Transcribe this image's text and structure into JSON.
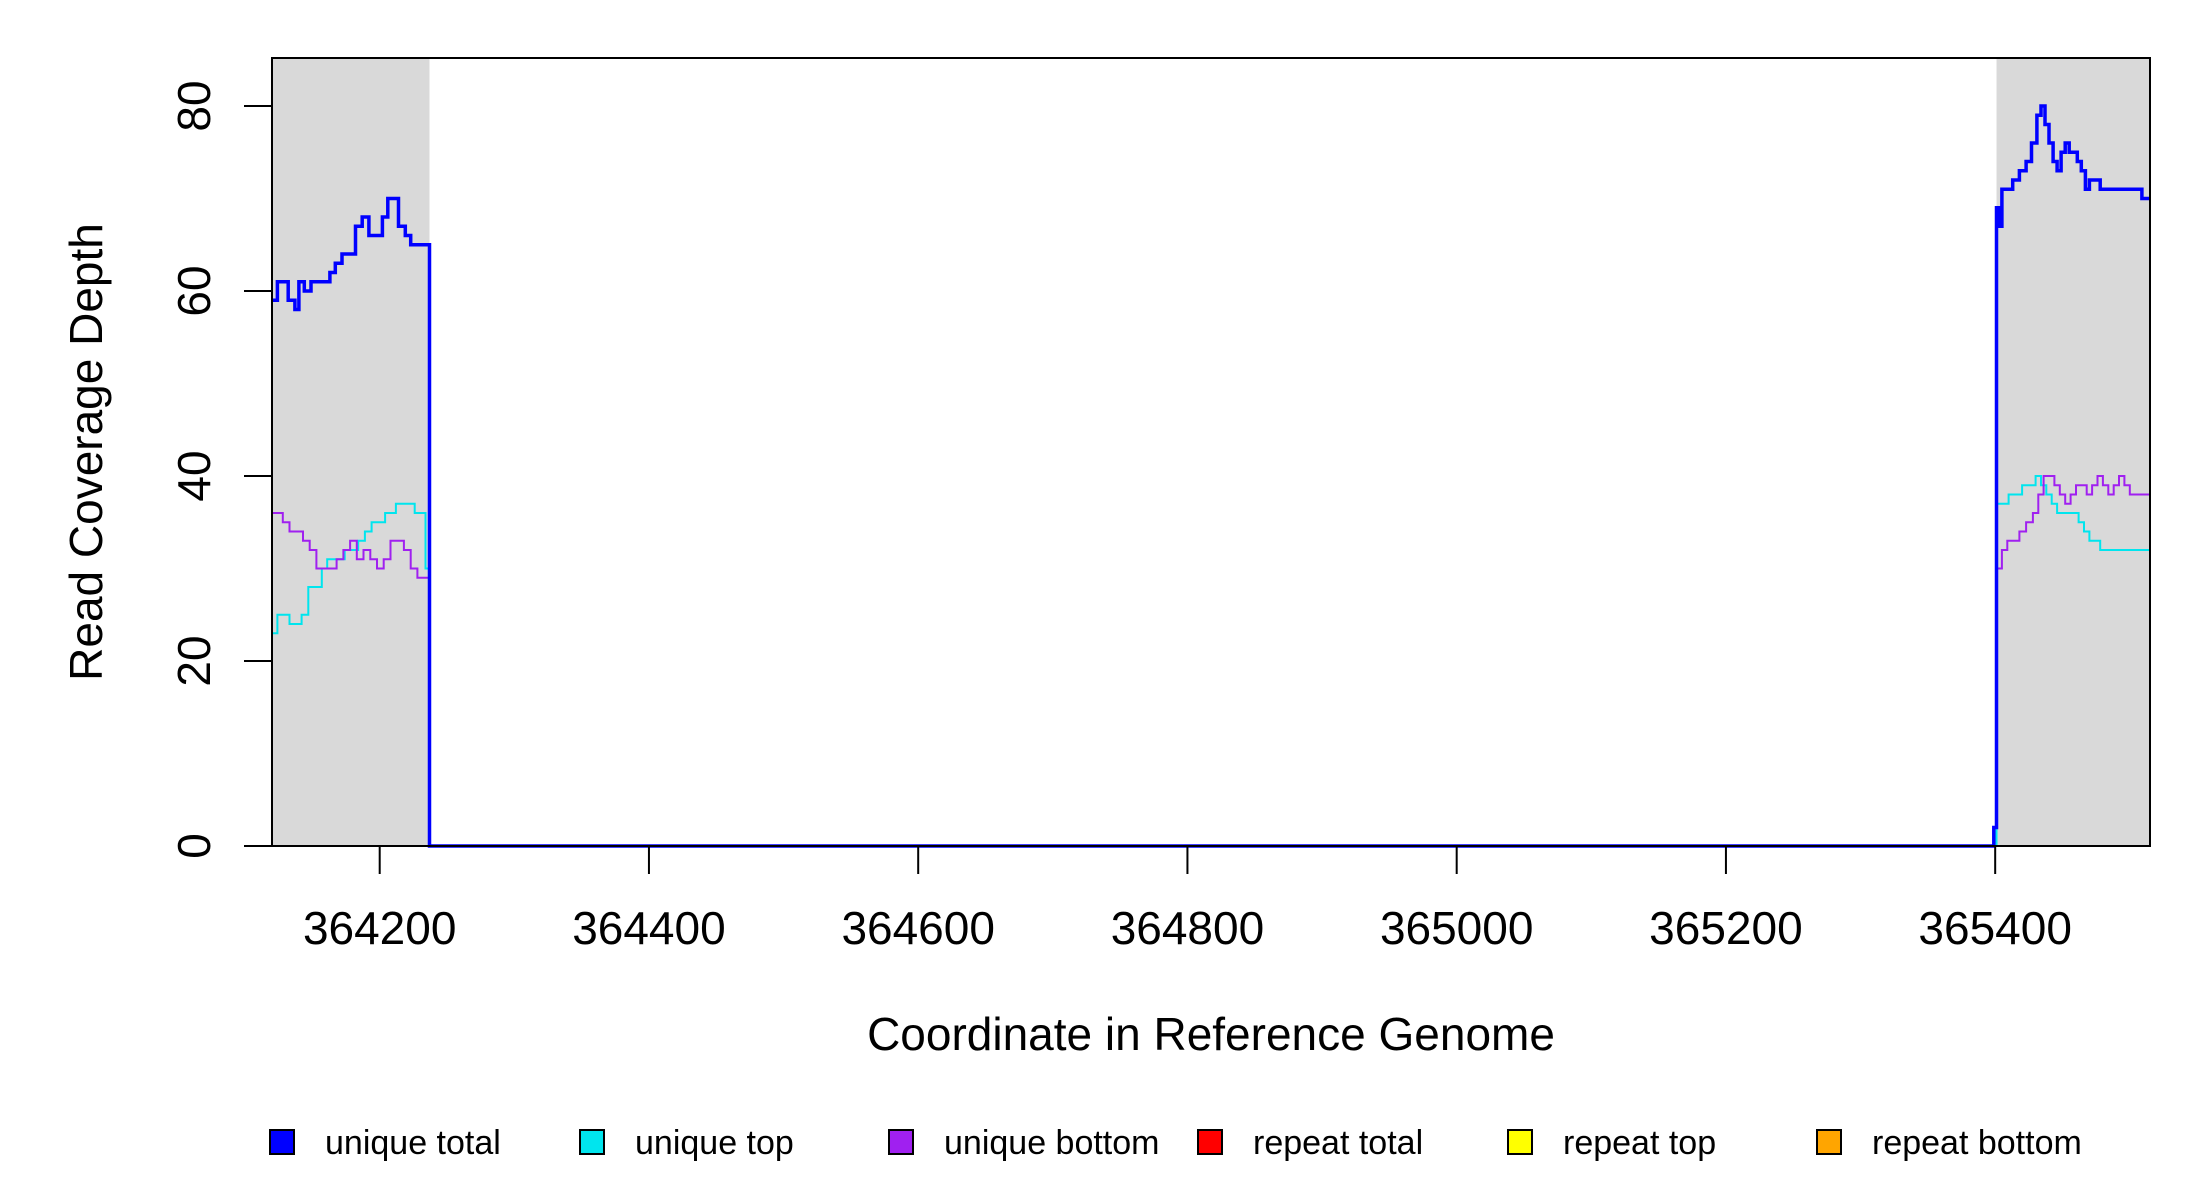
{
  "chart_data": {
    "type": "line",
    "xlabel": "Coordinate in Reference Genome",
    "ylabel": "Read Coverage Depth",
    "xlim": [
      364120,
      365515
    ],
    "ylim": [
      0,
      85
    ],
    "x_ticks": [
      364200,
      364400,
      364600,
      364800,
      365000,
      365200,
      365400
    ],
    "x_tick_labels": [
      "364200",
      "364400",
      "364600",
      "364800",
      "365000",
      "365200",
      "365400"
    ],
    "y_ticks": [
      0,
      20,
      40,
      60,
      80
    ],
    "y_tick_labels": [
      "0",
      "20",
      "40",
      "60",
      "80"
    ],
    "shaded_regions": [
      [
        364120,
        364237
      ],
      [
        365401,
        365515
      ]
    ],
    "shade_color": "#d9d9d9",
    "grid": false,
    "legend_position": "bottom",
    "series": [
      {
        "name": "unique total",
        "color": "#0000ff",
        "x": [
          364120,
          364124,
          364128,
          364132,
          364137,
          364140,
          364144,
          364149,
          364154,
          364159,
          364163,
          364167,
          364172,
          364178,
          364182,
          364187,
          364192,
          364197,
          364202,
          364206,
          364210,
          364214,
          364219,
          364223,
          364228,
          364232,
          364234,
          364236,
          364237,
          364238,
          365397,
          365399,
          365401,
          365403,
          365405,
          365409,
          365413,
          365418,
          365423,
          365427,
          365431,
          365434,
          365437,
          365440,
          365443,
          365446,
          365449,
          365452,
          365455,
          365458,
          365461,
          365464,
          365467,
          365470,
          365474,
          365478,
          365482,
          365486,
          365490,
          365494,
          365499,
          365504,
          365509,
          365514
        ],
        "y": [
          59,
          61,
          61,
          59,
          58,
          61,
          60,
          61,
          61,
          61,
          62,
          63,
          64,
          64,
          67,
          68,
          66,
          66,
          68,
          70,
          70,
          67,
          66,
          65,
          65,
          65,
          65,
          65,
          0,
          0,
          0,
          2,
          69,
          67,
          71,
          71,
          72,
          73,
          74,
          76,
          79,
          80,
          78,
          76,
          74,
          73,
          75,
          76,
          75,
          75,
          74,
          73,
          71,
          72,
          72,
          71,
          71,
          71,
          71,
          71,
          71,
          71,
          70,
          70
        ]
      },
      {
        "name": "unique top",
        "color": "#00e5ee",
        "x": [
          364120,
          364124,
          364128,
          364133,
          364138,
          364142,
          364147,
          364152,
          364157,
          364161,
          364165,
          364169,
          364174,
          364179,
          364184,
          364189,
          364194,
          364199,
          364204,
          364208,
          364212,
          364216,
          364221,
          364226,
          364230,
          364234,
          364236,
          364237,
          364238,
          365399,
          365401,
          365405,
          365410,
          365415,
          365420,
          365425,
          365430,
          365434,
          365438,
          365442,
          365446,
          365450,
          365454,
          365458,
          365462,
          365466,
          365470,
          365474,
          365478,
          365482,
          365486,
          365490,
          365494,
          365498,
          365502,
          365507,
          365512
        ],
        "y": [
          23,
          25,
          25,
          24,
          24,
          25,
          28,
          28,
          30,
          31,
          31,
          31,
          32,
          32,
          33,
          34,
          35,
          35,
          36,
          36,
          37,
          37,
          37,
          36,
          36,
          30,
          30,
          0,
          0,
          0,
          37,
          37,
          38,
          38,
          39,
          39,
          40,
          39,
          38,
          37,
          36,
          36,
          36,
          36,
          35,
          34,
          33,
          33,
          32,
          32,
          32,
          32,
          32,
          32,
          32,
          32,
          32
        ]
      },
      {
        "name": "unique bottom",
        "color": "#a020f0",
        "x": [
          364120,
          364124,
          364128,
          364133,
          364138,
          364143,
          364148,
          364153,
          364158,
          364163,
          364168,
          364173,
          364178,
          364183,
          364188,
          364193,
          364198,
          364203,
          364208,
          364213,
          364218,
          364223,
          364228,
          364232,
          364234,
          364236,
          364237,
          364238,
          365397,
          365399,
          365401,
          365405,
          365409,
          365413,
          365418,
          365423,
          365428,
          365432,
          365436,
          365440,
          365444,
          365448,
          365452,
          365456,
          365460,
          365464,
          365468,
          365472,
          365476,
          365480,
          365484,
          365488,
          365492,
          365496,
          365500,
          365505,
          365510,
          365514
        ],
        "y": [
          36,
          36,
          35,
          34,
          34,
          33,
          32,
          30,
          30,
          30,
          31,
          32,
          33,
          31,
          32,
          31,
          30,
          31,
          33,
          33,
          32,
          30,
          29,
          29,
          29,
          29,
          0,
          0,
          0,
          2,
          30,
          32,
          33,
          33,
          34,
          35,
          36,
          38,
          40,
          40,
          39,
          38,
          37,
          38,
          39,
          39,
          38,
          39,
          40,
          39,
          38,
          39,
          40,
          39,
          38,
          38,
          38,
          38
        ]
      },
      {
        "name": "repeat total",
        "color": "#ff0000",
        "x": [
          364120,
          365515
        ],
        "y": [
          0,
          0
        ]
      },
      {
        "name": "repeat top",
        "color": "#ffff00",
        "x": [
          364120,
          365515
        ],
        "y": [
          0,
          0
        ]
      },
      {
        "name": "repeat bottom",
        "color": "#ffa500",
        "x": [
          364120,
          365515
        ],
        "y": [
          0,
          0
        ]
      }
    ]
  }
}
